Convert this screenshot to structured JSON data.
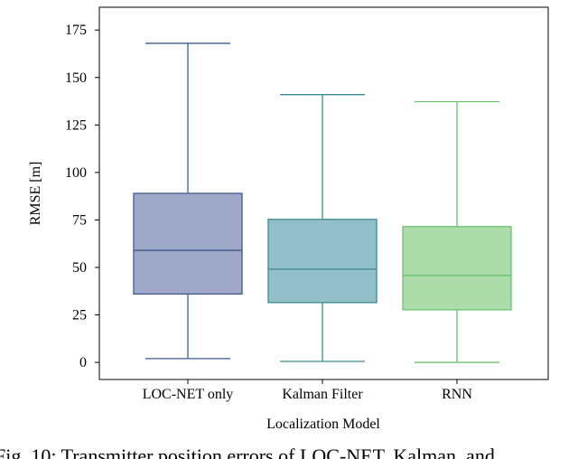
{
  "chart_data": {
    "type": "box",
    "caption": "Fig. 10: Transmitter position errors of LOC-NET, Kalman, and",
    "x_label": "Localization Model",
    "y_label": "RMSE [m]",
    "categories": [
      "LOC-NET only",
      "Kalman Filter",
      "RNN"
    ],
    "min": [
      2,
      0.5,
      0
    ],
    "q1": [
      36,
      31.5,
      27.7
    ],
    "median": [
      59,
      49.1,
      45.8
    ],
    "q3": [
      89,
      75.3,
      71.5
    ],
    "max": [
      168,
      141,
      137.3
    ],
    "colors": [
      "#3f5a8a",
      "#3d8a8f",
      "#6cc070"
    ],
    "fill_colors": [
      "#a0a8c8",
      "#92bfc9",
      "#acdcaa"
    ],
    "ylim": [
      -9,
      187
    ],
    "yticks": [
      0,
      25,
      50,
      75,
      100,
      125,
      150,
      175
    ],
    "grid": false
  }
}
